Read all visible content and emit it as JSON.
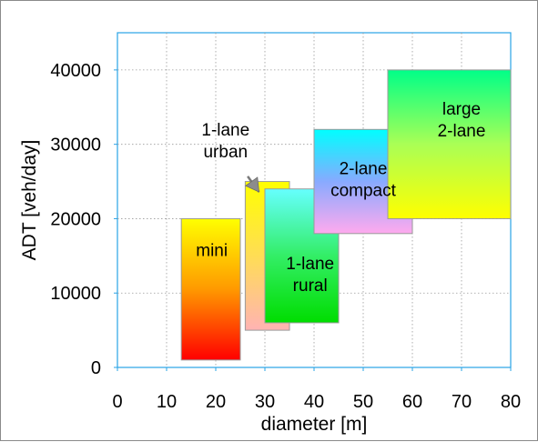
{
  "chart_data": {
    "type": "range-box",
    "title": "",
    "xlabel": "diameter   [m]",
    "ylabel": "ADT   [veh/day]",
    "xlim": [
      0,
      80
    ],
    "ylim": [
      0,
      45000
    ],
    "x_ticks": [
      "0",
      "10",
      "20",
      "30",
      "40",
      "50",
      "60",
      "70",
      "80"
    ],
    "y_ticks": [
      "0",
      "10000",
      "20000",
      "30000",
      "40000"
    ],
    "grid": true,
    "legend": "none",
    "series": [
      {
        "name": "mini",
        "x_range": [
          13,
          25
        ],
        "y_range": [
          1000,
          20000
        ],
        "gradient": [
          "#ffff00",
          "#ff9900",
          "#ff0000"
        ]
      },
      {
        "name": "1-lane urban",
        "x_range": [
          26,
          35
        ],
        "y_range": [
          5000,
          25000
        ],
        "gradient": [
          "#ffff00",
          "#ffdd55",
          "#ffb3b3"
        ]
      },
      {
        "name": "1-lane rural",
        "x_range": [
          30,
          45
        ],
        "y_range": [
          6000,
          24000
        ],
        "gradient": [
          "#66ffff",
          "#33ee66",
          "#00dd00"
        ]
      },
      {
        "name": "2-lane compact",
        "x_range": [
          40,
          60
        ],
        "y_range": [
          18000,
          32000
        ],
        "gradient": [
          "#00ffff",
          "#88aaff",
          "#ffaaee"
        ]
      },
      {
        "name": "large 2-lane",
        "x_range": [
          55,
          80
        ],
        "y_range": [
          20000,
          40000
        ],
        "gradient": [
          "#00ff88",
          "#aaff55",
          "#ffff00"
        ]
      }
    ],
    "labels": [
      {
        "lines": [
          "mini"
        ],
        "x": 19.2,
        "y": 15000,
        "anchor": "middle"
      },
      {
        "lines": [
          "1-lane",
          "urban"
        ],
        "x": 22.0,
        "y": 31200,
        "anchor": "middle"
      },
      {
        "lines": [
          "1-lane",
          "rural"
        ],
        "x": 39.2,
        "y": 13200,
        "anchor": "middle"
      },
      {
        "lines": [
          "2-lane",
          "compact"
        ],
        "x": 50.0,
        "y": 26000,
        "anchor": "middle"
      },
      {
        "lines": [
          "large",
          "2-lane"
        ],
        "x": 70.0,
        "y": 34000,
        "anchor": "middle"
      }
    ],
    "annotations": [
      {
        "type": "arrow",
        "from": [
          26.5,
          25700
        ],
        "to": [
          28.8,
          23600
        ]
      }
    ]
  }
}
